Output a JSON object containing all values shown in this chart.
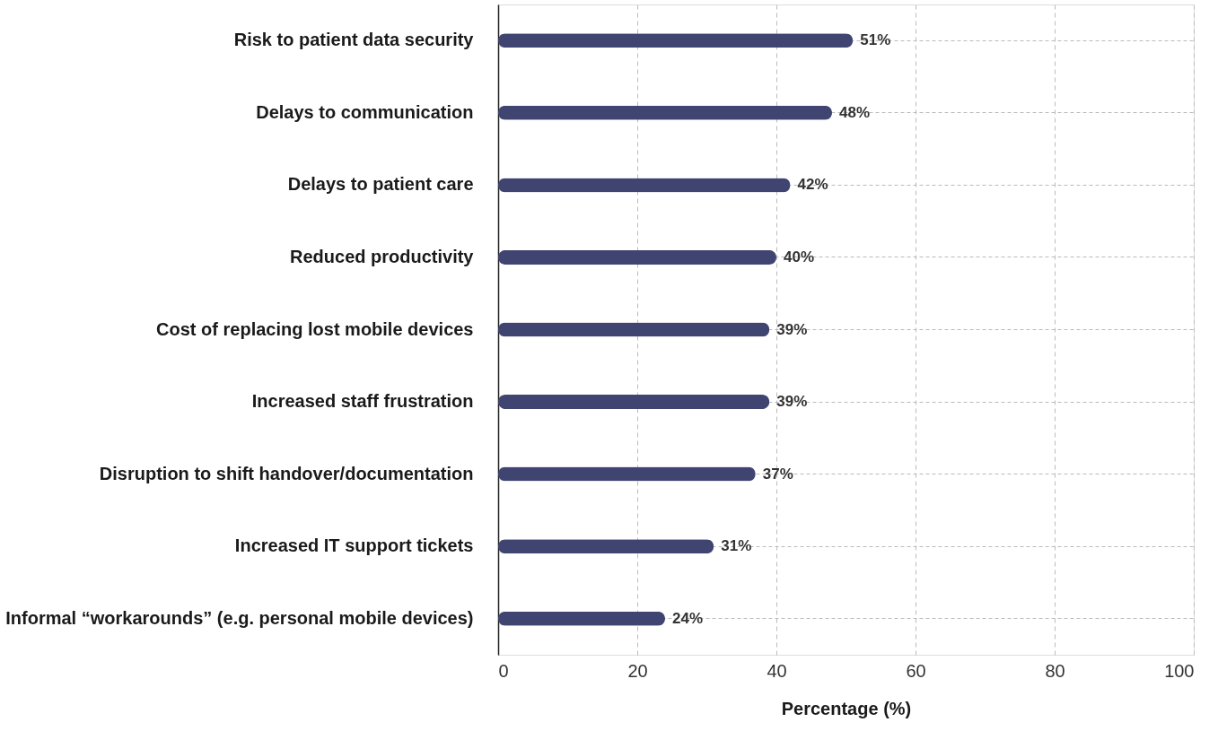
{
  "chart_data": {
    "type": "bar",
    "orientation": "horizontal",
    "xlabel": "Percentage (%)",
    "categories": [
      "Risk to patient data security",
      "Delays to communication",
      "Delays to patient care",
      "Reduced productivity",
      "Cost of replacing lost mobile devices",
      "Increased staff frustration",
      "Disruption to shift handover/documentation",
      "Increased IT support tickets",
      "Informal “workarounds” (e.g. personal mobile devices)"
    ],
    "values": [
      51,
      48,
      42,
      40,
      39,
      39,
      37,
      31,
      24
    ],
    "value_labels": [
      "51%",
      "48%",
      "42%",
      "40%",
      "39%",
      "39%",
      "37%",
      "31%",
      "24%"
    ],
    "color": "#3f4470",
    "xlim": [
      0,
      100
    ],
    "xticks": [
      0,
      20,
      40,
      60,
      80,
      100
    ],
    "grid": true
  }
}
